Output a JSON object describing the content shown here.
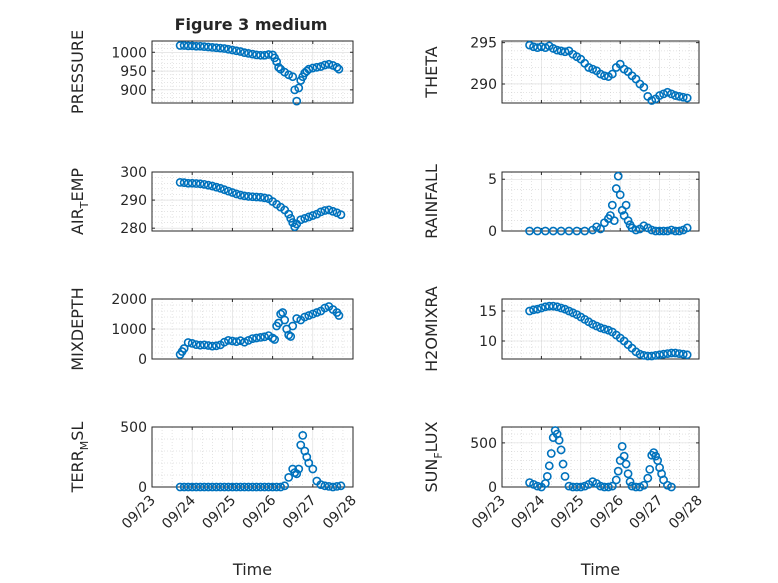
{
  "figure": {
    "title": "Figure 3 medium",
    "marker_color": "#0072BD",
    "marker": "circle"
  },
  "chart_data": [
    {
      "type": "scatter",
      "id": "pressure",
      "ylabel": "PRESSURE",
      "ylabel_parts": [
        {
          "text": "PRESSURE"
        }
      ],
      "ylim": [
        865,
        1030
      ],
      "yticks": [
        900,
        950,
        1000
      ],
      "xlim": [
        0,
        5
      ],
      "xticks": [
        0,
        1,
        2,
        3,
        4,
        5
      ],
      "xticklabels": [
        "09/23",
        "09/24",
        "09/25",
        "09/26",
        "09/27",
        "09/28"
      ],
      "show_xticklabels": false,
      "grid": true,
      "x": [
        0.7,
        0.8,
        0.9,
        1.0,
        1.1,
        1.2,
        1.3,
        1.4,
        1.5,
        1.6,
        1.7,
        1.8,
        1.9,
        2.0,
        2.1,
        2.2,
        2.3,
        2.4,
        2.5,
        2.6,
        2.7,
        2.8,
        2.9,
        3.0,
        3.05,
        3.1,
        3.15,
        3.2,
        3.3,
        3.4,
        3.5,
        3.55,
        3.6,
        3.65,
        3.7,
        3.75,
        3.8,
        3.85,
        3.9,
        4.0,
        4.1,
        4.2,
        4.3,
        4.4,
        4.5,
        4.6,
        4.65
      ],
      "y": [
        1018,
        1018,
        1017,
        1017,
        1016,
        1016,
        1015,
        1014,
        1013,
        1012,
        1011,
        1010,
        1008,
        1006,
        1004,
        1002,
        999,
        997,
        995,
        993,
        992,
        992,
        994,
        993,
        985,
        975,
        960,
        955,
        947,
        940,
        935,
        900,
        870,
        905,
        925,
        935,
        945,
        950,
        955,
        958,
        960,
        962,
        966,
        968,
        965,
        960,
        955
      ]
    },
    {
      "type": "scatter",
      "id": "theta",
      "ylabel": "THETA",
      "ylabel_parts": [
        {
          "text": "THETA"
        }
      ],
      "ylim": [
        287.7,
        295.2
      ],
      "yticks": [
        290,
        295
      ],
      "xlim": [
        0,
        5
      ],
      "xticks": [
        0,
        1,
        2,
        3,
        4,
        5
      ],
      "xticklabels": [
        "09/23",
        "09/24",
        "09/25",
        "09/26",
        "09/27",
        "09/28"
      ],
      "show_xticklabels": false,
      "grid": true,
      "x": [
        0.7,
        0.8,
        0.9,
        1.0,
        1.1,
        1.2,
        1.3,
        1.4,
        1.5,
        1.6,
        1.7,
        1.8,
        1.9,
        2.0,
        2.1,
        2.2,
        2.3,
        2.4,
        2.5,
        2.6,
        2.7,
        2.8,
        2.9,
        3.0,
        3.1,
        3.2,
        3.3,
        3.4,
        3.5,
        3.6,
        3.7,
        3.8,
        3.9,
        4.0,
        4.1,
        4.2,
        4.3,
        4.4,
        4.5,
        4.6,
        4.7
      ],
      "y": [
        294.7,
        294.5,
        294.4,
        294.5,
        294.4,
        294.6,
        294.3,
        294.1,
        294.0,
        293.9,
        294.0,
        293.6,
        293.3,
        293.0,
        292.5,
        292.0,
        291.8,
        291.6,
        291.2,
        291.0,
        290.9,
        291.2,
        292.0,
        292.4,
        291.8,
        291.5,
        291.0,
        290.6,
        290.0,
        289.6,
        288.5,
        288.0,
        288.2,
        288.6,
        288.8,
        289.0,
        288.8,
        288.6,
        288.5,
        288.4,
        288.3
      ]
    },
    {
      "type": "scatter",
      "id": "air_temp",
      "ylabel": "AIR_TEMP",
      "ylabel_parts": [
        {
          "text": "AIR"
        },
        {
          "text": "T",
          "sub": true
        },
        {
          "text": "EMP"
        }
      ],
      "ylim": [
        279,
        300
      ],
      "yticks": [
        280,
        290,
        300
      ],
      "xlim": [
        0,
        5
      ],
      "xticks": [
        0,
        1,
        2,
        3,
        4,
        5
      ],
      "xticklabels": [
        "09/23",
        "09/24",
        "09/25",
        "09/26",
        "09/27",
        "09/28"
      ],
      "show_xticklabels": false,
      "grid": true,
      "x": [
        0.7,
        0.8,
        0.9,
        1.0,
        1.1,
        1.2,
        1.3,
        1.4,
        1.5,
        1.6,
        1.7,
        1.8,
        1.9,
        2.0,
        2.1,
        2.2,
        2.3,
        2.4,
        2.5,
        2.6,
        2.7,
        2.8,
        2.9,
        3.0,
        3.1,
        3.2,
        3.3,
        3.4,
        3.45,
        3.5,
        3.55,
        3.6,
        3.7,
        3.8,
        3.9,
        4.0,
        4.1,
        4.2,
        4.3,
        4.4,
        4.5,
        4.6,
        4.7
      ],
      "y": [
        296.3,
        296.2,
        296.0,
        296.0,
        295.9,
        295.8,
        295.6,
        295.3,
        295.0,
        294.6,
        294.2,
        293.7,
        293.2,
        292.7,
        292.2,
        291.8,
        291.5,
        291.3,
        291.2,
        291.1,
        291.0,
        290.8,
        290.5,
        289.5,
        288.5,
        287.5,
        286.5,
        285.0,
        283.5,
        282.0,
        280.5,
        281.5,
        283.0,
        283.5,
        284.0,
        284.5,
        285.0,
        285.8,
        286.3,
        286.5,
        286.0,
        285.5,
        284.8
      ]
    },
    {
      "type": "scatter",
      "id": "rainfall",
      "ylabel": "RAINFALL",
      "ylabel_parts": [
        {
          "text": "RAINFALL"
        }
      ],
      "ylim": [
        0,
        5.7
      ],
      "yticks": [
        0,
        5
      ],
      "xlim": [
        0,
        5
      ],
      "xticks": [
        0,
        1,
        2,
        3,
        4,
        5
      ],
      "xticklabels": [
        "09/23",
        "09/24",
        "09/25",
        "09/26",
        "09/27",
        "09/28"
      ],
      "show_xticklabels": false,
      "grid": true,
      "x": [
        0.7,
        0.9,
        1.1,
        1.3,
        1.5,
        1.7,
        1.9,
        2.1,
        2.3,
        2.4,
        2.5,
        2.6,
        2.7,
        2.75,
        2.8,
        2.85,
        2.9,
        2.95,
        3.0,
        3.05,
        3.1,
        3.15,
        3.2,
        3.25,
        3.3,
        3.4,
        3.5,
        3.6,
        3.7,
        3.8,
        3.9,
        4.0,
        4.1,
        4.2,
        4.3,
        4.4,
        4.5,
        4.6,
        4.7
      ],
      "y": [
        0,
        0,
        0,
        0,
        0,
        0,
        0,
        0,
        0.1,
        0.4,
        0.2,
        0.8,
        1.2,
        1.5,
        2.5,
        1.0,
        4.1,
        5.3,
        3.5,
        2.0,
        1.5,
        2.5,
        1.0,
        0.6,
        0.3,
        0.1,
        0.2,
        0.5,
        0.3,
        0.1,
        0,
        0,
        0,
        0,
        0.1,
        0,
        0,
        0.1,
        0.3
      ]
    },
    {
      "type": "scatter",
      "id": "mixdepth",
      "ylabel": "MIXDEPTH",
      "ylabel_parts": [
        {
          "text": "MIXDEPTH"
        }
      ],
      "ylim": [
        0,
        2000
      ],
      "yticks": [
        0,
        1000,
        2000
      ],
      "xlim": [
        0,
        5
      ],
      "xticks": [
        0,
        1,
        2,
        3,
        4,
        5
      ],
      "xticklabels": [
        "09/23",
        "09/24",
        "09/25",
        "09/26",
        "09/27",
        "09/28"
      ],
      "show_xticklabels": false,
      "grid": true,
      "x": [
        0.7,
        0.75,
        0.8,
        0.9,
        1.0,
        1.1,
        1.2,
        1.3,
        1.4,
        1.5,
        1.6,
        1.7,
        1.8,
        1.9,
        2.0,
        2.1,
        2.2,
        2.3,
        2.4,
        2.5,
        2.6,
        2.7,
        2.8,
        2.9,
        3.0,
        3.05,
        3.1,
        3.15,
        3.2,
        3.25,
        3.3,
        3.35,
        3.4,
        3.45,
        3.5,
        3.6,
        3.7,
        3.8,
        3.9,
        4.0,
        4.1,
        4.2,
        4.3,
        4.4,
        4.5,
        4.6,
        4.65
      ],
      "y": [
        150,
        250,
        350,
        550,
        520,
        480,
        460,
        470,
        450,
        430,
        440,
        470,
        560,
        620,
        600,
        580,
        610,
        560,
        620,
        680,
        700,
        720,
        740,
        780,
        700,
        650,
        1100,
        1200,
        1500,
        1550,
        1300,
        1000,
        800,
        750,
        1100,
        1350,
        1300,
        1400,
        1450,
        1500,
        1550,
        1600,
        1700,
        1750,
        1650,
        1550,
        1450
      ]
    },
    {
      "type": "scatter",
      "id": "h2omixra",
      "ylabel": "H2OMIXRA",
      "ylabel_parts": [
        {
          "text": "H2OMIXRA"
        }
      ],
      "ylim": [
        7,
        17
      ],
      "yticks": [
        10,
        15
      ],
      "xlim": [
        0,
        5
      ],
      "xticks": [
        0,
        1,
        2,
        3,
        4,
        5
      ],
      "xticklabels": [
        "09/23",
        "09/24",
        "09/25",
        "09/26",
        "09/27",
        "09/28"
      ],
      "show_xticklabels": false,
      "grid": true,
      "x": [
        0.7,
        0.8,
        0.9,
        1.0,
        1.1,
        1.2,
        1.3,
        1.4,
        1.5,
        1.6,
        1.7,
        1.8,
        1.9,
        2.0,
        2.1,
        2.2,
        2.3,
        2.4,
        2.5,
        2.6,
        2.7,
        2.8,
        2.9,
        3.0,
        3.1,
        3.2,
        3.3,
        3.4,
        3.5,
        3.6,
        3.7,
        3.8,
        3.9,
        4.0,
        4.1,
        4.2,
        4.3,
        4.4,
        4.5,
        4.6,
        4.7
      ],
      "y": [
        15.0,
        15.2,
        15.3,
        15.5,
        15.7,
        15.8,
        15.8,
        15.7,
        15.5,
        15.3,
        15.0,
        14.7,
        14.4,
        14.0,
        13.6,
        13.2,
        12.8,
        12.5,
        12.2,
        12.0,
        11.8,
        11.5,
        11.0,
        10.5,
        10.0,
        9.4,
        8.8,
        8.2,
        7.8,
        7.6,
        7.5,
        7.5,
        7.6,
        7.7,
        7.8,
        7.9,
        8.0,
        8.0,
        7.9,
        7.8,
        7.7
      ]
    },
    {
      "type": "scatter",
      "id": "terr_msl",
      "ylabel": "TERR_MSL",
      "ylabel_parts": [
        {
          "text": "TERR"
        },
        {
          "text": "M",
          "sub": true
        },
        {
          "text": "SL"
        }
      ],
      "ylim": [
        0,
        500
      ],
      "yticks": [
        0,
        500
      ],
      "xlim": [
        0,
        5
      ],
      "xticks": [
        0,
        1,
        2,
        3,
        4,
        5
      ],
      "xticklabels": [
        "09/23",
        "09/24",
        "09/25",
        "09/26",
        "09/27",
        "09/28"
      ],
      "show_xticklabels": true,
      "xlabel": "Time",
      "grid": true,
      "x": [
        0.7,
        0.8,
        0.9,
        1.0,
        1.1,
        1.2,
        1.3,
        1.4,
        1.5,
        1.6,
        1.7,
        1.8,
        1.9,
        2.0,
        2.1,
        2.2,
        2.3,
        2.4,
        2.5,
        2.6,
        2.7,
        2.8,
        2.9,
        3.0,
        3.1,
        3.2,
        3.3,
        3.4,
        3.5,
        3.55,
        3.6,
        3.65,
        3.7,
        3.75,
        3.8,
        3.85,
        3.9,
        4.0,
        4.1,
        4.2,
        4.3,
        4.4,
        4.5,
        4.6,
        4.7
      ],
      "y": [
        0,
        0,
        0,
        0,
        0,
        0,
        0,
        0,
        0,
        0,
        0,
        0,
        0,
        0,
        0,
        0,
        0,
        0,
        0,
        0,
        0,
        0,
        0,
        0,
        0,
        0,
        10,
        80,
        150,
        120,
        110,
        150,
        350,
        430,
        300,
        250,
        200,
        150,
        50,
        20,
        10,
        5,
        0,
        5,
        10
      ]
    },
    {
      "type": "scatter",
      "id": "sun_flux",
      "ylabel": "SUN_FLUX",
      "ylabel_parts": [
        {
          "text": "SUN"
        },
        {
          "text": "F",
          "sub": true
        },
        {
          "text": "LUX"
        }
      ],
      "ylim": [
        0,
        680
      ],
      "yticks": [
        0,
        500
      ],
      "xlim": [
        0,
        5
      ],
      "xticks": [
        0,
        1,
        2,
        3,
        4,
        5
      ],
      "xticklabels": [
        "09/23",
        "09/24",
        "09/25",
        "09/26",
        "09/27",
        "09/28"
      ],
      "show_xticklabels": true,
      "xlabel": "Time",
      "grid": true,
      "x": [
        0.7,
        0.8,
        0.9,
        1.0,
        1.1,
        1.15,
        1.2,
        1.25,
        1.3,
        1.35,
        1.4,
        1.45,
        1.5,
        1.55,
        1.6,
        1.7,
        1.8,
        1.9,
        2.0,
        2.1,
        2.2,
        2.3,
        2.4,
        2.5,
        2.6,
        2.7,
        2.8,
        2.9,
        2.95,
        3.0,
        3.05,
        3.1,
        3.15,
        3.2,
        3.25,
        3.3,
        3.4,
        3.5,
        3.6,
        3.7,
        3.75,
        3.8,
        3.85,
        3.9,
        3.95,
        4.0,
        4.05,
        4.1,
        4.2,
        4.3
      ],
      "y": [
        50,
        30,
        10,
        0,
        40,
        120,
        240,
        380,
        560,
        640,
        600,
        530,
        420,
        260,
        120,
        10,
        0,
        0,
        0,
        10,
        30,
        60,
        40,
        10,
        0,
        0,
        10,
        80,
        180,
        300,
        460,
        350,
        260,
        150,
        60,
        10,
        0,
        0,
        20,
        100,
        200,
        360,
        390,
        350,
        300,
        220,
        150,
        80,
        20,
        0
      ]
    }
  ]
}
